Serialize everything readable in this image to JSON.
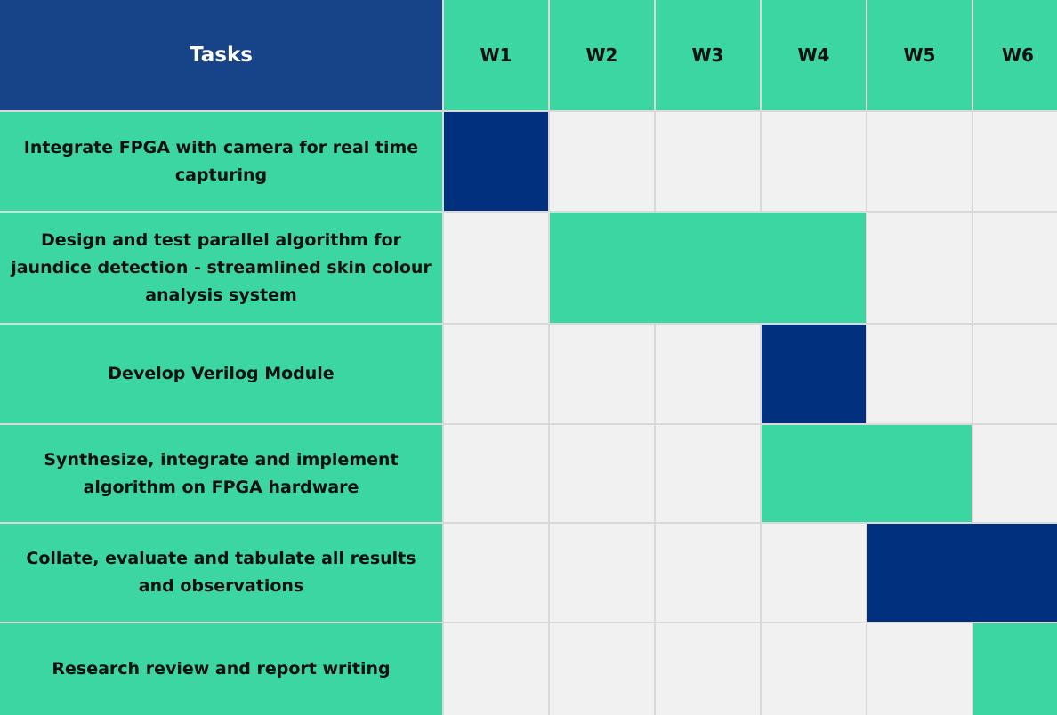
{
  "header": {
    "tasks_label": "Tasks",
    "weeks": [
      "W1",
      "W2",
      "W3",
      "W4",
      "W5",
      "W6"
    ]
  },
  "colors": {
    "header_bg": "#174488",
    "green": "#3cd6a2",
    "navy": "#00307e",
    "empty": "#f1f1f1"
  },
  "tasks": [
    {
      "label": "Integrate FPGA with camera for real time capturing",
      "start_week": 1,
      "end_week": 1,
      "color": "navy"
    },
    {
      "label": "Design and test parallel algorithm for jaundice detection - streamlined skin colour analysis system",
      "start_week": 2,
      "end_week": 4,
      "color": "green"
    },
    {
      "label": "Develop Verilog Module",
      "start_week": 4,
      "end_week": 4,
      "color": "navy"
    },
    {
      "label": "Synthesize, integrate and implement algorithm on FPGA hardware",
      "start_week": 4,
      "end_week": 5,
      "color": "green"
    },
    {
      "label": "Collate, evaluate and tabulate all results and observations",
      "start_week": 5,
      "end_week": 6,
      "color": "navy"
    },
    {
      "label": "Research review and report writing",
      "start_week": 6,
      "end_week": 6,
      "color": "green"
    }
  ]
}
